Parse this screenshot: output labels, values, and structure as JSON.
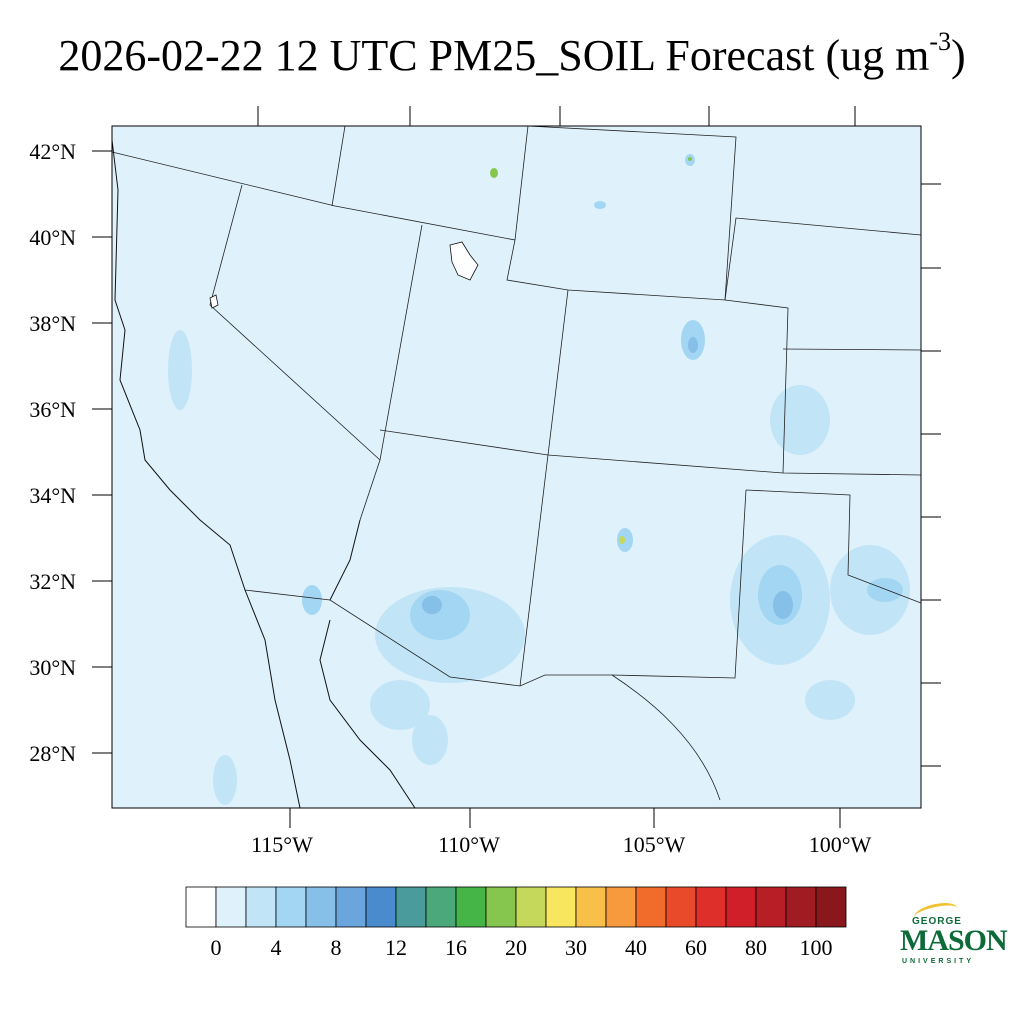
{
  "title": {
    "main": "2026-02-22 12 UTC PM25_SOIL Forecast (ug m",
    "exponent": "-3",
    "close": ")"
  },
  "map": {
    "lat_labels": [
      "42°N",
      "40°N",
      "38°N",
      "36°N",
      "34°N",
      "32°N",
      "30°N",
      "28°N"
    ],
    "lon_labels": [
      "115°W",
      "110°W",
      "105°W",
      "100°W"
    ],
    "background_color": "#dff1fb"
  },
  "colorbar": {
    "colors": [
      "#ffffff",
      "#dff1fb",
      "#c1e5f6",
      "#a2d6f3",
      "#86bfe7",
      "#6aa5dd",
      "#4a8bcd",
      "#4a9b9b",
      "#4aa87a",
      "#45b547",
      "#86c64e",
      "#c5d85b",
      "#f8e75e",
      "#f8c048",
      "#f69a3d",
      "#f16b2b",
      "#e84a2a",
      "#df2f2b",
      "#d11f2a",
      "#b81e26",
      "#a01b22",
      "#8a171c"
    ],
    "labels": [
      "0",
      "4",
      "8",
      "12",
      "16",
      "20",
      "30",
      "40",
      "60",
      "80",
      "100"
    ]
  },
  "logo": {
    "line1": "GEORGE",
    "line2": "MASON",
    "line3": "UNIVERSITY"
  }
}
